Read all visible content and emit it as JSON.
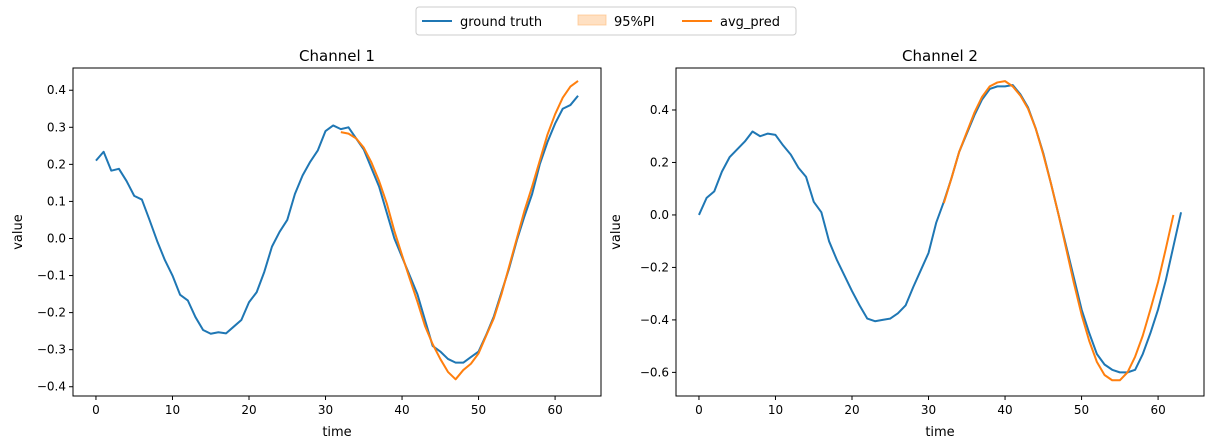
{
  "legend": {
    "items": [
      {
        "label": "ground truth",
        "color": "#1f77b4",
        "kind": "line"
      },
      {
        "label": "95%PI",
        "color": "#ffbb78",
        "kind": "patch"
      },
      {
        "label": "avg_pred",
        "color": "#ff7f0e",
        "kind": "line"
      }
    ],
    "placement": "top-center"
  },
  "chart_data": [
    {
      "type": "line",
      "title": "Channel 1",
      "xlabel": "time",
      "ylabel": "value",
      "xlim": [
        -3,
        66
      ],
      "ylim": [
        -0.425,
        0.46
      ],
      "xticks": [
        0,
        10,
        20,
        30,
        40,
        50,
        60
      ],
      "yticks": [
        -0.4,
        -0.3,
        -0.2,
        -0.1,
        0.0,
        0.1,
        0.2,
        0.3,
        0.4
      ],
      "ytick_labels": [
        "−0.4",
        "−0.3",
        "−0.2",
        "−0.1",
        "0.0",
        "0.1",
        "0.2",
        "0.3",
        "0.4"
      ],
      "grid": false,
      "series": [
        {
          "name": "ground truth",
          "color": "#1f77b4",
          "x_start": 0,
          "values": [
            0.21,
            0.234,
            0.183,
            0.188,
            0.155,
            0.115,
            0.105,
            0.05,
            -0.007,
            -0.058,
            -0.1,
            -0.152,
            -0.167,
            -0.212,
            -0.247,
            -0.257,
            -0.253,
            -0.256,
            -0.238,
            -0.22,
            -0.172,
            -0.145,
            -0.09,
            -0.022,
            0.018,
            0.05,
            0.12,
            0.17,
            0.207,
            0.238,
            0.29,
            0.305,
            0.295,
            0.3,
            0.27,
            0.24,
            0.19,
            0.14,
            0.07,
            0.0,
            -0.05,
            -0.1,
            -0.15,
            -0.22,
            -0.29,
            -0.305,
            -0.325,
            -0.335,
            -0.335,
            -0.32,
            -0.305,
            -0.26,
            -0.21,
            -0.145,
            -0.08,
            -0.005,
            0.06,
            0.12,
            0.2,
            0.26,
            0.31,
            0.35,
            0.36,
            0.385
          ]
        },
        {
          "name": "avg_pred",
          "color": "#ff7f0e",
          "x_start": 32,
          "values": [
            0.287,
            0.283,
            0.27,
            0.245,
            0.205,
            0.155,
            0.095,
            0.02,
            -0.045,
            -0.108,
            -0.17,
            -0.236,
            -0.285,
            -0.325,
            -0.36,
            -0.38,
            -0.355,
            -0.338,
            -0.31,
            -0.262,
            -0.215,
            -0.15,
            -0.075,
            0.0,
            0.075,
            0.14,
            0.21,
            0.28,
            0.335,
            0.38,
            0.41,
            0.425
          ]
        }
      ]
    },
    {
      "type": "line",
      "title": "Channel 2",
      "xlabel": "time",
      "ylabel": "value",
      "xlim": [
        -3,
        66
      ],
      "ylim": [
        -0.69,
        0.56
      ],
      "xticks": [
        0,
        10,
        20,
        30,
        40,
        50,
        60
      ],
      "yticks": [
        -0.6,
        -0.4,
        -0.2,
        0.0,
        0.2,
        0.4
      ],
      "ytick_labels": [
        "−0.6",
        "−0.4",
        "−0.2",
        "0.0",
        "0.2",
        "0.4"
      ],
      "grid": false,
      "series": [
        {
          "name": "ground truth",
          "color": "#1f77b4",
          "x_start": 0,
          "values": [
            0.0,
            0.065,
            0.09,
            0.165,
            0.22,
            0.25,
            0.28,
            0.318,
            0.3,
            0.31,
            0.305,
            0.265,
            0.23,
            0.18,
            0.145,
            0.05,
            0.01,
            -0.1,
            -0.17,
            -0.23,
            -0.29,
            -0.345,
            -0.395,
            -0.405,
            -0.4,
            -0.395,
            -0.375,
            -0.345,
            -0.275,
            -0.21,
            -0.145,
            -0.03,
            0.05,
            0.14,
            0.24,
            0.31,
            0.38,
            0.44,
            0.48,
            0.49,
            0.49,
            0.495,
            0.46,
            0.41,
            0.33,
            0.235,
            0.12,
            0.0,
            -0.12,
            -0.24,
            -0.36,
            -0.45,
            -0.53,
            -0.57,
            -0.59,
            -0.6,
            -0.6,
            -0.59,
            -0.53,
            -0.45,
            -0.36,
            -0.25,
            -0.12,
            0.01
          ]
        },
        {
          "name": "avg_pred",
          "color": "#ff7f0e",
          "x_start": 32,
          "values": [
            0.045,
            0.14,
            0.24,
            0.315,
            0.39,
            0.45,
            0.49,
            0.505,
            0.51,
            0.49,
            0.455,
            0.405,
            0.33,
            0.23,
            0.12,
            0.0,
            -0.13,
            -0.26,
            -0.38,
            -0.48,
            -0.56,
            -0.61,
            -0.63,
            -0.63,
            -0.6,
            -0.54,
            -0.46,
            -0.36,
            -0.255,
            -0.13,
            0.0
          ]
        }
      ]
    }
  ]
}
